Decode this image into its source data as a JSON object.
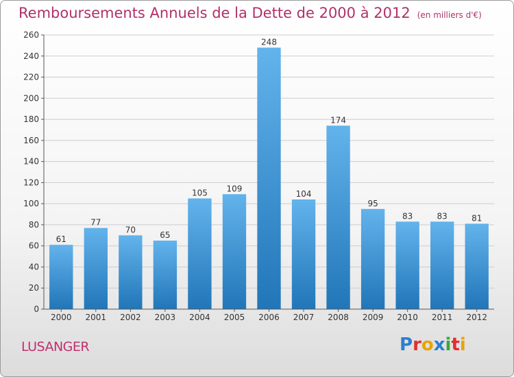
{
  "header": {
    "title": "Remboursements Annuels de la Dette de 2000 à 2012",
    "subtitle": "(en milliers d'€)"
  },
  "commune": "LUSANGER",
  "logo": {
    "letters": [
      "P",
      "r",
      "o",
      "x",
      "i",
      "t",
      "i"
    ],
    "colors": [
      "#2b7fd0",
      "#e0302e",
      "#e8a400",
      "#2b7fd0",
      "#3aa636",
      "#e0302e",
      "#e8a400"
    ]
  },
  "colors": {
    "bar_top": "#63b3ec",
    "bar_bottom": "#2176b8",
    "grid": "#cccccc",
    "axis": "#555555",
    "text": "#333333"
  },
  "chart_data": {
    "type": "bar",
    "categories": [
      "2000",
      "2001",
      "2002",
      "2003",
      "2004",
      "2005",
      "2006",
      "2007",
      "2008",
      "2009",
      "2010",
      "2011",
      "2012"
    ],
    "values": [
      61,
      77,
      70,
      65,
      105,
      109,
      248,
      104,
      174,
      95,
      83,
      83,
      81
    ],
    "title": "Remboursements Annuels de la Dette de 2000 à 2012",
    "xlabel": "",
    "ylabel": "",
    "ylim": [
      0,
      260
    ],
    "yticks": [
      0,
      20,
      40,
      60,
      80,
      100,
      120,
      140,
      160,
      180,
      200,
      220,
      240,
      260
    ],
    "grid": true,
    "legend": "none"
  }
}
